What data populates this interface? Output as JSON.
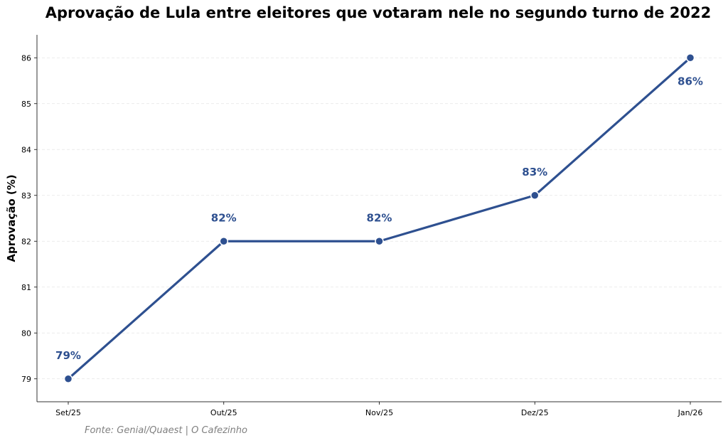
{
  "chart_data": {
    "type": "line",
    "title": "Aprovação de Lula entre eleitores que votaram nele no segundo turno de 2022",
    "xlabel": "",
    "ylabel": "Aprovação (%)",
    "categories": [
      "Set/25",
      "Out/25",
      "Nov/25",
      "Dez/25",
      "Jan/26"
    ],
    "values": [
      79,
      82,
      82,
      83,
      86
    ],
    "data_labels": [
      "79%",
      "82%",
      "82%",
      "83%",
      "86%"
    ],
    "ylim": [
      78.5,
      86.5
    ],
    "yticks": [
      79,
      80,
      81,
      82,
      83,
      84,
      85,
      86
    ],
    "grid": "horizontal dashed",
    "color": "#2e5090",
    "source": "Fonte: Genial/Quaest | O Cafezinho"
  }
}
